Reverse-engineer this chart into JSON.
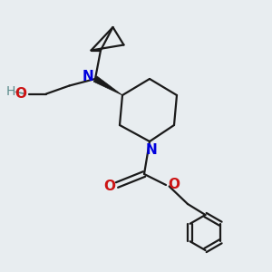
{
  "bg_color": "#e8edf0",
  "bond_color": "#1a1a1a",
  "N_color": "#0000dd",
  "O_color": "#cc1414",
  "H_color": "#5a8a8a",
  "line_width": 1.6,
  "figsize": [
    3.0,
    3.0
  ],
  "dpi": 100,
  "xlim": [
    0,
    10
  ],
  "ylim": [
    0,
    10
  ]
}
